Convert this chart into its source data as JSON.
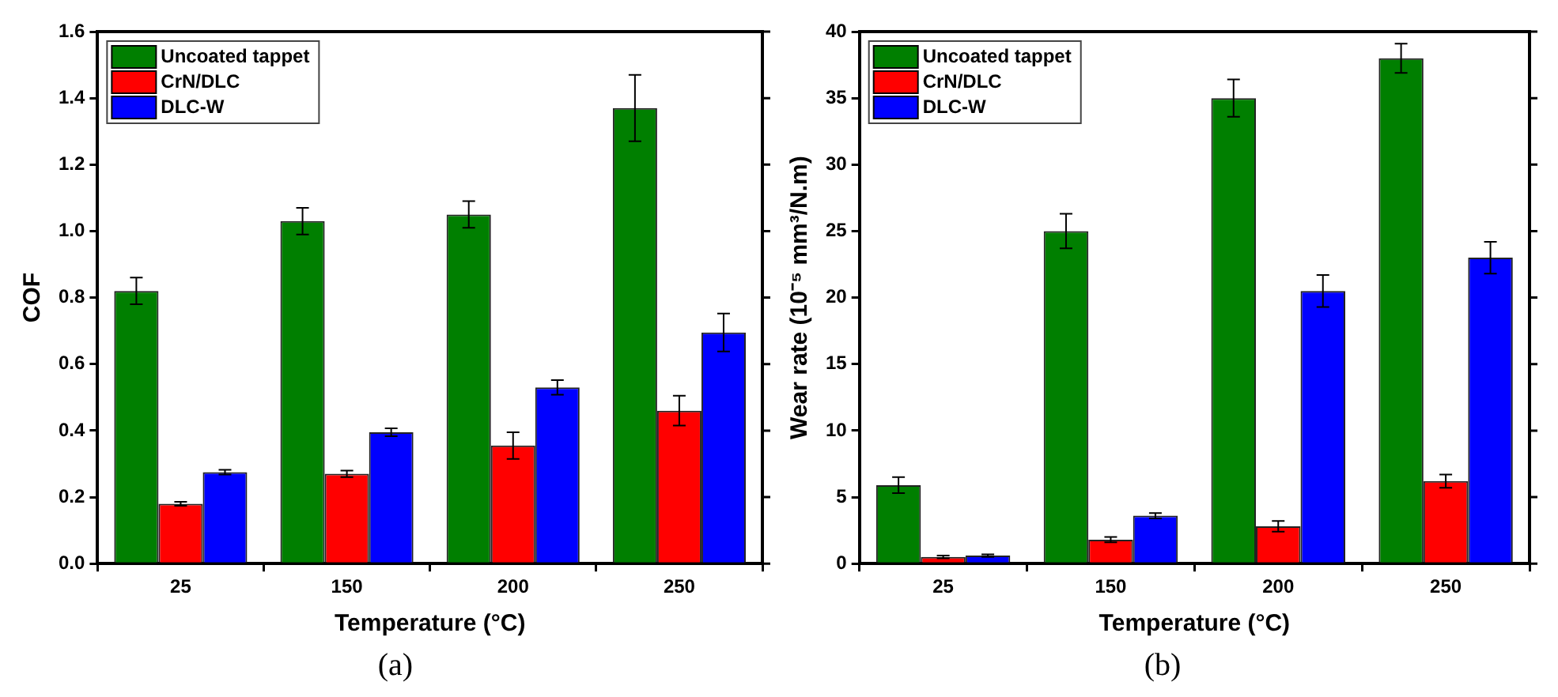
{
  "chart_data": [
    {
      "type": "bar",
      "xlabel": "Temperature (°C)",
      "ylabel": "COF",
      "annotations": [
        "(a)"
      ],
      "categories": [
        "25",
        "150",
        "200",
        "250"
      ],
      "ylim": [
        0,
        1.6
      ],
      "yticks": [
        {
          "value": 0,
          "label": "0.0"
        },
        0.2,
        0.4,
        0.6,
        0.8,
        {
          "value": 1,
          "label": "1.0"
        },
        1.2,
        1.4,
        1.6
      ],
      "legend": "top left",
      "grid": false,
      "series": [
        {
          "name": "Uncoated tappet",
          "color": "#007f00",
          "values": [
            0.82,
            1.03,
            1.05,
            1.37
          ],
          "errors": [
            0.04,
            0.04,
            0.04,
            0.1
          ]
        },
        {
          "name": "CrN/DLC",
          "color": "#ff0000",
          "values": [
            0.18,
            0.27,
            0.355,
            0.46
          ],
          "errors": [
            0.006,
            0.01,
            0.04,
            0.045
          ]
        },
        {
          "name": "DLC-W",
          "color": "#0000ff",
          "values": [
            0.275,
            0.395,
            0.53,
            0.695
          ],
          "errors": [
            0.007,
            0.012,
            0.022,
            0.057
          ]
        }
      ]
    },
    {
      "type": "bar",
      "xlabel": "Temperature (°C)",
      "ylabel": "Wear rate (10⁻⁵ mm³/N.m)",
      "annotations": [
        "(b)"
      ],
      "categories": [
        "25",
        "150",
        "200",
        "250"
      ],
      "ylim": [
        0,
        40
      ],
      "yticks": [
        0,
        5,
        10,
        15,
        20,
        25,
        30,
        35,
        40
      ],
      "legend": "top left",
      "grid": false,
      "series": [
        {
          "name": "Uncoated tappet",
          "color": "#007f00",
          "values": [
            5.9,
            25,
            35,
            38
          ],
          "errors": [
            0.6,
            1.3,
            1.4,
            1.1
          ]
        },
        {
          "name": "CrN/DLC",
          "color": "#ff0000",
          "values": [
            0.5,
            1.8,
            2.8,
            6.2
          ],
          "errors": [
            0.1,
            0.2,
            0.4,
            0.5
          ]
        },
        {
          "name": "DLC-W",
          "color": "#0000ff",
          "values": [
            0.6,
            3.6,
            20.5,
            23
          ],
          "errors": [
            0.1,
            0.2,
            1.2,
            1.2
          ]
        }
      ]
    }
  ]
}
